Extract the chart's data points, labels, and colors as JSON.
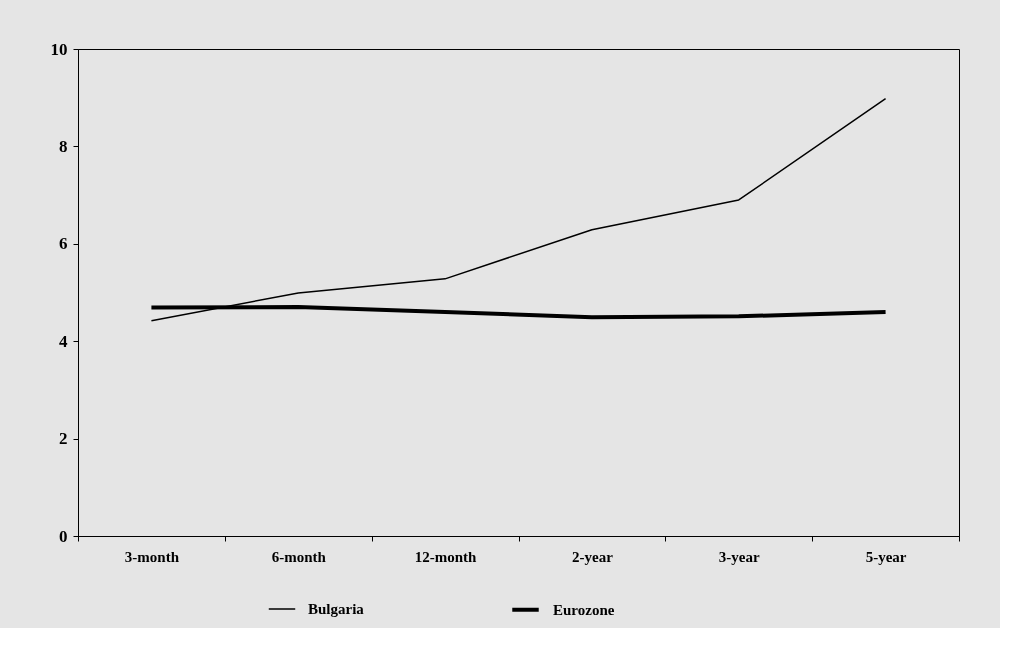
{
  "chart_data": {
    "type": "line",
    "categories": [
      "3-month",
      "6-month",
      "12-month",
      "2-year",
      "3-year",
      "5-year"
    ],
    "series": [
      {
        "name": "Bulgaria",
        "color": "#000000",
        "values": [
          4.42,
          4.99,
          5.28,
          6.29,
          6.9,
          8.98
        ]
      },
      {
        "name": "Eurozone",
        "color": "#000000",
        "values": [
          4.69,
          4.7,
          4.6,
          4.49,
          4.51,
          4.6
        ]
      }
    ],
    "ylim": [
      0,
      10
    ],
    "yticks": [
      0,
      2,
      4,
      6,
      8,
      10
    ],
    "grid": false,
    "legend": "bottom",
    "marker": "none",
    "line_style": "solid"
  }
}
